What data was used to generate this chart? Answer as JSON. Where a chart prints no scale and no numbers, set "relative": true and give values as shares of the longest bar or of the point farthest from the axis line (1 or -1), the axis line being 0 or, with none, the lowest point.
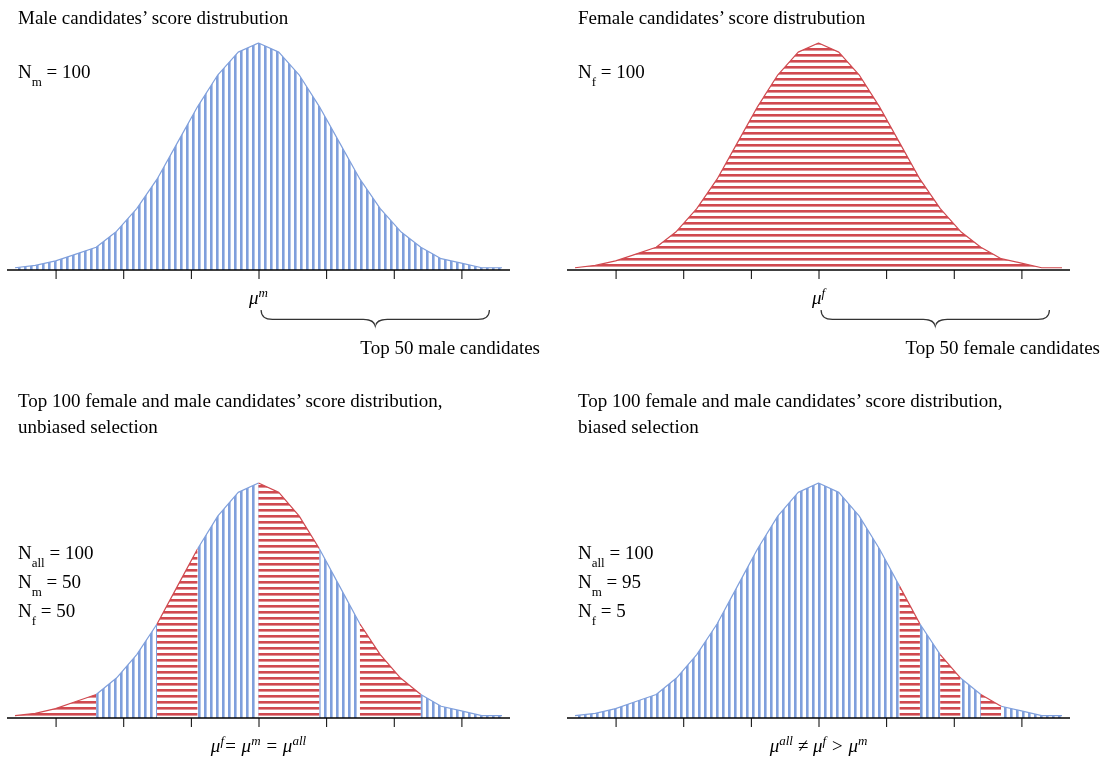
{
  "chart_data": [
    {
      "type": "area",
      "relative": true,
      "title": "Male candidates’ score distrubution",
      "xlabel": "μ$^{m}$",
      "annotations": [
        "N$_{m}$ = 100",
        "Top 50 male candidates"
      ],
      "categories": [
        null,
        null,
        null,
        null,
        null,
        null,
        null,
        null,
        null,
        null,
        null,
        null,
        null,
        null,
        null,
        null,
        null,
        null,
        null,
        null,
        null,
        null,
        null,
        null,
        null
      ],
      "series": [
        {
          "color": "#7f9fdc",
          "values": [
            0.01,
            0.02,
            0.04,
            0.07,
            0.1,
            0.17,
            0.27,
            0.4,
            0.56,
            0.72,
            0.86,
            0.96,
            1,
            0.96,
            0.86,
            0.72,
            0.56,
            0.4,
            0.27,
            0.17,
            0.1,
            0.05,
            0.03,
            0.01,
            0.01
          ]
        }
      ]
    },
    {
      "type": "area",
      "relative": true,
      "title": "Female candidates’ score distrubution",
      "xlabel": "μ$^{f}$",
      "annotations": [
        "N$_{f}$ = 100",
        "Top 50 female candidates"
      ],
      "categories": [
        null,
        null,
        null,
        null,
        null,
        null,
        null,
        null,
        null,
        null,
        null,
        null,
        null,
        null,
        null,
        null,
        null,
        null,
        null,
        null,
        null,
        null,
        null,
        null,
        null
      ],
      "series": [
        {
          "color": "#d0494f",
          "values": [
            0.01,
            0.02,
            0.04,
            0.07,
            0.1,
            0.17,
            0.27,
            0.4,
            0.56,
            0.72,
            0.86,
            0.96,
            1,
            0.96,
            0.86,
            0.72,
            0.56,
            0.4,
            0.27,
            0.17,
            0.1,
            0.05,
            0.03,
            0.01,
            0.01
          ]
        }
      ]
    },
    {
      "type": "area",
      "relative": true,
      "title": "Top 100 female and male candidates’ score distribution,",
      "subtitle": "unbiased selection",
      "xlabel": "μ$^{f}$= μ$^{m}$ = μ$^{all}$",
      "annotations": [
        "N$_{all}$ = 100",
        "N$_{m}$ = 50",
        "N$_{f}$ = 50"
      ],
      "categories": [
        null,
        null,
        null,
        null,
        null,
        null,
        null,
        null,
        null,
        null,
        null,
        null,
        null,
        null,
        null,
        null,
        null,
        null,
        null,
        null,
        null,
        null,
        null,
        null,
        null
      ],
      "series": [
        {
          "color": "#d0494f",
          "values": [
            0.01,
            0.02,
            0.04,
            0.07,
            0.1,
            null,
            null,
            null,
            null,
            null,
            null,
            null,
            null,
            null,
            null,
            null,
            null,
            null,
            null,
            null,
            null,
            null,
            null,
            null,
            null
          ]
        },
        {
          "color": "#7f9fdc",
          "values": [
            null,
            null,
            null,
            null,
            0.1,
            0.17,
            0.27,
            0.4,
            null,
            null,
            null,
            null,
            null,
            null,
            null,
            null,
            null,
            null,
            null,
            null,
            null,
            null,
            null,
            null,
            null
          ]
        },
        {
          "color": "#d0494f",
          "values": [
            null,
            null,
            null,
            null,
            null,
            null,
            null,
            0.4,
            0.56,
            0.72,
            null,
            null,
            null,
            null,
            null,
            null,
            null,
            null,
            null,
            null,
            null,
            null,
            null,
            null,
            null
          ]
        },
        {
          "color": "#7f9fdc",
          "values": [
            null,
            null,
            null,
            null,
            null,
            null,
            null,
            null,
            null,
            0.72,
            0.86,
            0.96,
            1,
            null,
            null,
            null,
            null,
            null,
            null,
            null,
            null,
            null,
            null,
            null,
            null
          ]
        },
        {
          "color": "#d0494f",
          "values": [
            null,
            null,
            null,
            null,
            null,
            null,
            null,
            null,
            null,
            null,
            null,
            null,
            1,
            0.96,
            0.86,
            0.72,
            null,
            null,
            null,
            null,
            null,
            null,
            null,
            null,
            null
          ]
        },
        {
          "color": "#7f9fdc",
          "values": [
            null,
            null,
            null,
            null,
            null,
            null,
            null,
            null,
            null,
            null,
            null,
            null,
            null,
            null,
            null,
            0.72,
            0.56,
            0.4,
            null,
            null,
            null,
            null,
            null,
            null,
            null
          ]
        },
        {
          "color": "#d0494f",
          "values": [
            null,
            null,
            null,
            null,
            null,
            null,
            null,
            null,
            null,
            null,
            null,
            null,
            null,
            null,
            null,
            null,
            null,
            0.4,
            0.27,
            0.17,
            0.1,
            null,
            null,
            null,
            null
          ]
        },
        {
          "color": "#7f9fdc",
          "values": [
            null,
            null,
            null,
            null,
            null,
            null,
            null,
            null,
            null,
            null,
            null,
            null,
            null,
            null,
            null,
            null,
            null,
            null,
            null,
            null,
            0.1,
            0.05,
            0.03,
            0.01,
            0.01
          ]
        }
      ]
    },
    {
      "type": "area",
      "relative": true,
      "title": "Top 100 female and male candidates’ score distribution,",
      "subtitle": "biased selection",
      "xlabel": "μ$^{all}$ ≠ μ$^{f}$ > μ$^{m}$",
      "annotations": [
        "N$_{all}$ = 100",
        "N$_{m}$ = 95",
        "N$_{f}$ = 5"
      ],
      "categories": [
        null,
        null,
        null,
        null,
        null,
        null,
        null,
        null,
        null,
        null,
        null,
        null,
        null,
        null,
        null,
        null,
        null,
        null,
        null,
        null,
        null,
        null,
        null,
        null,
        null
      ],
      "series": [
        {
          "color": "#7f9fdc",
          "values": [
            0.01,
            0.02,
            0.04,
            0.07,
            0.1,
            0.17,
            0.27,
            0.4,
            0.56,
            0.72,
            0.86,
            0.96,
            1,
            0.96,
            0.86,
            0.72,
            0.56,
            null,
            null,
            null,
            null,
            null,
            null,
            null,
            null
          ]
        },
        {
          "color": "#d0494f",
          "values": [
            null,
            null,
            null,
            null,
            null,
            null,
            null,
            null,
            null,
            null,
            null,
            null,
            null,
            null,
            null,
            null,
            0.56,
            0.4,
            null,
            null,
            null,
            null,
            null,
            null,
            null
          ]
        },
        {
          "color": "#7f9fdc",
          "values": [
            null,
            null,
            null,
            null,
            null,
            null,
            null,
            null,
            null,
            null,
            null,
            null,
            null,
            null,
            null,
            null,
            null,
            0.4,
            0.27,
            null,
            null,
            null,
            null,
            null,
            null
          ]
        },
        {
          "color": "#d0494f",
          "values": [
            null,
            null,
            null,
            null,
            null,
            null,
            null,
            null,
            null,
            null,
            null,
            null,
            null,
            null,
            null,
            null,
            null,
            null,
            0.27,
            0.17,
            null,
            null,
            null,
            null,
            null
          ]
        },
        {
          "color": "#7f9fdc",
          "values": [
            null,
            null,
            null,
            null,
            null,
            null,
            null,
            null,
            null,
            null,
            null,
            null,
            null,
            null,
            null,
            null,
            null,
            null,
            null,
            0.17,
            0.1,
            null,
            null,
            null,
            null
          ]
        },
        {
          "color": "#d0494f",
          "values": [
            null,
            null,
            null,
            null,
            null,
            null,
            null,
            null,
            null,
            null,
            null,
            null,
            null,
            null,
            null,
            null,
            null,
            null,
            null,
            null,
            0.1,
            0.05,
            null,
            null,
            null
          ]
        },
        {
          "color": "#7f9fdc",
          "values": [
            null,
            null,
            null,
            null,
            null,
            null,
            null,
            null,
            null,
            null,
            null,
            null,
            null,
            null,
            null,
            null,
            null,
            null,
            null,
            null,
            null,
            0.05,
            0.03,
            0.01,
            0.01
          ]
        }
      ]
    }
  ]
}
